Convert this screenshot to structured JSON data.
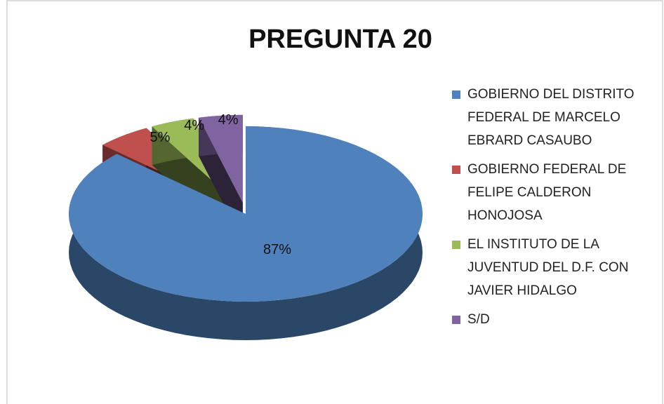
{
  "chart_data": {
    "type": "pie3d",
    "title": "PREGUNTA 20",
    "categories": [
      "GOBIERNO DEL DISTRITO FEDERAL DE MARCELO EBRARD CASAUBO",
      "GOBIERNO FEDERAL DE FELIPE CALDERON HONOJOSA",
      "EL INSTITUTO DE LA JUVENTUD DEL D.F. CON JAVIER HIDALGO",
      "S/D"
    ],
    "values": [
      87,
      5,
      4,
      4
    ],
    "value_labels": [
      "87%",
      "5%",
      "4%",
      "4%"
    ],
    "colors": [
      "#4f81bd",
      "#c0504d",
      "#9bbb59",
      "#8064a2"
    ],
    "legend": "right"
  }
}
